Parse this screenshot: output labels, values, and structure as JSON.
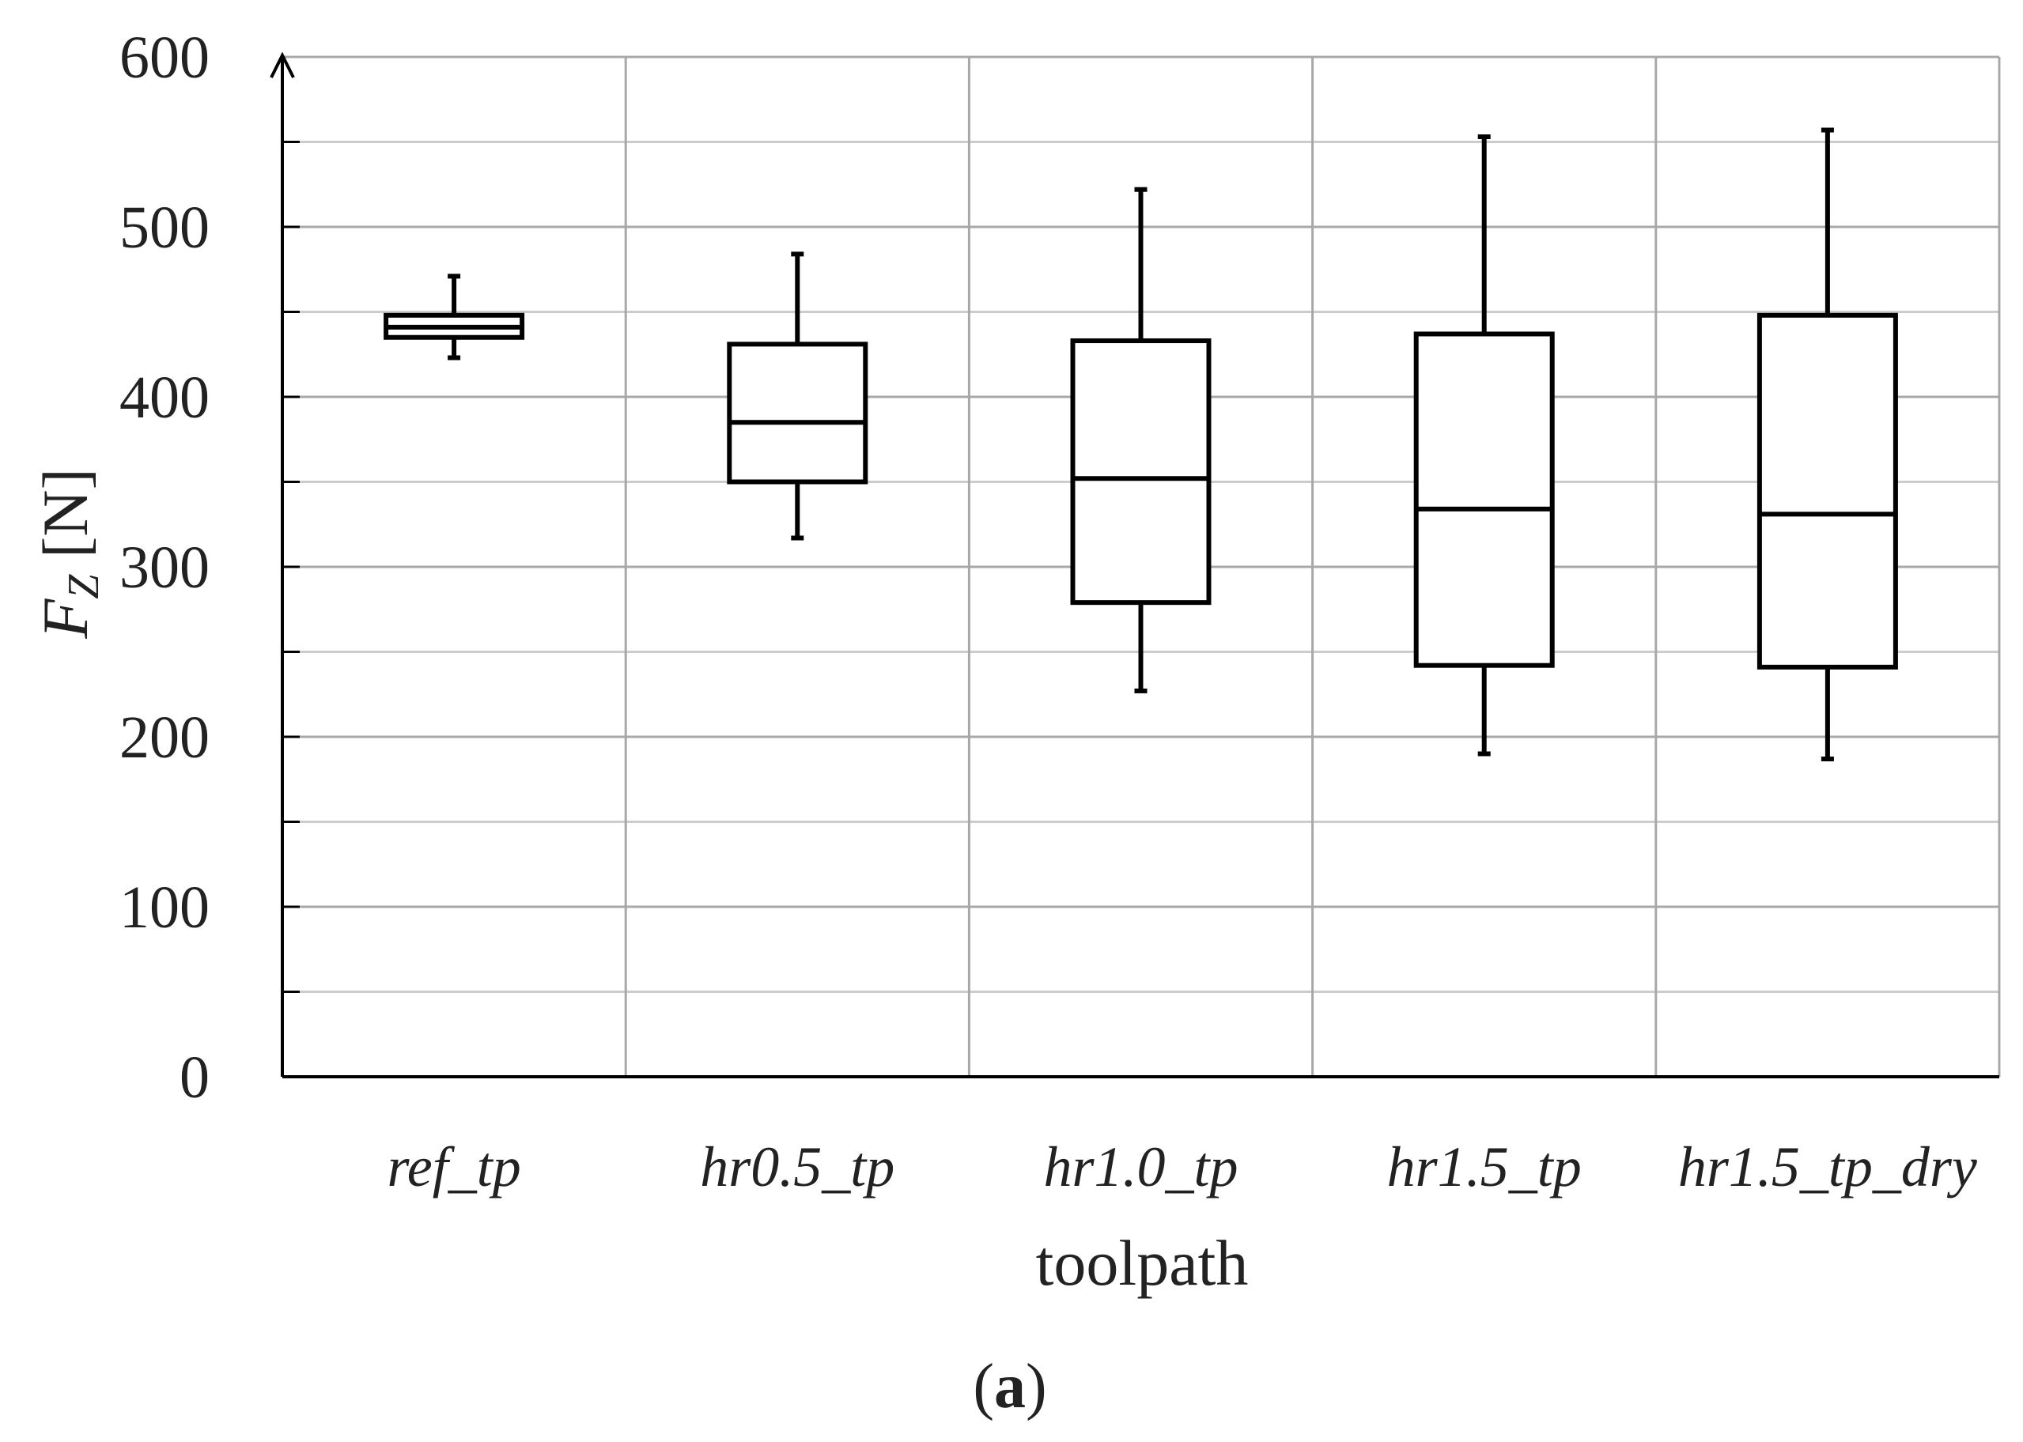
{
  "chart_data": {
    "type": "box",
    "title": "",
    "panel_label": {
      "open": "(",
      "letter": "a",
      "close": ")"
    },
    "xlabel": "toolpath",
    "ylabel": {
      "main": "F",
      "sub": "Z",
      "unit": " [N]"
    },
    "ylim": [
      0,
      600
    ],
    "yticks": [
      0,
      100,
      200,
      300,
      400,
      500,
      600
    ],
    "minor_step": 50,
    "grid": true,
    "categories": [
      "ref_tp",
      "hr0.5_tp",
      "hr1.0_tp",
      "hr1.5_tp",
      "hr1.5_tp_dry"
    ],
    "boxes": [
      {
        "category": "ref_tp",
        "whisker_low": 423,
        "q1": 435,
        "median": 441,
        "q3": 448,
        "whisker_high": 471
      },
      {
        "category": "hr0.5_tp",
        "whisker_low": 317,
        "q1": 350,
        "median": 385,
        "q3": 431,
        "whisker_high": 484
      },
      {
        "category": "hr1.0_tp",
        "whisker_low": 227,
        "q1": 279,
        "median": 352,
        "q3": 433,
        "whisker_high": 522
      },
      {
        "category": "hr1.5_tp",
        "whisker_low": 190,
        "q1": 242,
        "median": 334,
        "q3": 437,
        "whisker_high": 553
      },
      {
        "category": "hr1.5_tp_dry",
        "whisker_low": 187,
        "q1": 241,
        "median": 331,
        "q3": 448,
        "whisker_high": 557
      }
    ],
    "colors": {
      "box": "#000000",
      "grid_major": "#a8a8a8",
      "grid_minor": "#cccccc",
      "axis": "#000000"
    }
  }
}
